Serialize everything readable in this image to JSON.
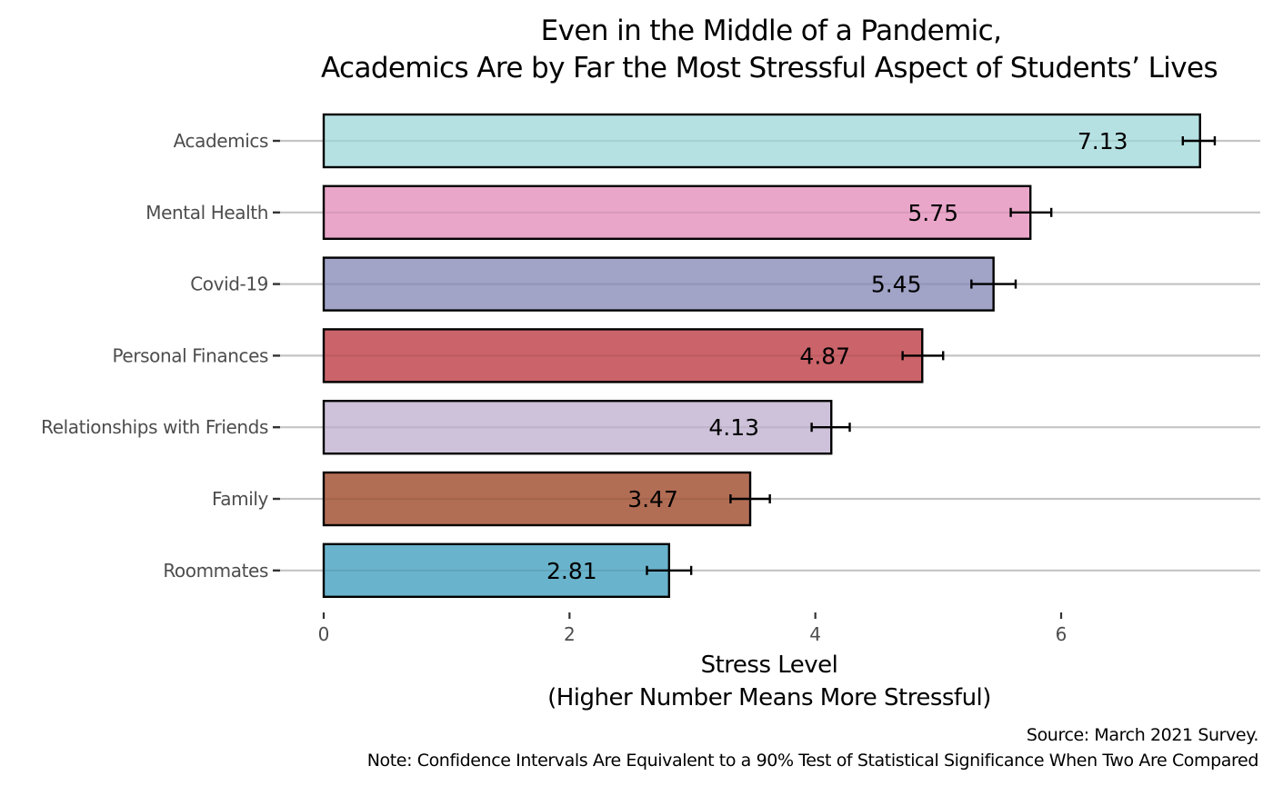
{
  "chart_data": {
    "type": "bar",
    "orientation": "horizontal",
    "title": "Even in the Middle of a Pandemic,\nAcademics Are by Far the Most Stressful Aspect of Students’ Lives",
    "title_lines": [
      "Even in the Middle of a Pandemic,",
      "Academics Are by Far the Most Stressful Aspect of Students’ Lives"
    ],
    "xlabel": "Stress Level\n(Higher Number Means More Stressful)",
    "xlabel_lines": [
      "Stress Level",
      "(Higher Number Means More Stressful)"
    ],
    "ylabel": "",
    "caption_lines": [
      "Source: March 2021 Survey.",
      "Note: Confidence Intervals Are Equivalent to a 90% Test of Statistical Significance When Two Are Compared"
    ],
    "xlim": [
      0,
      7.3
    ],
    "xticks": [
      0,
      2,
      4,
      6
    ],
    "xtick_labels": [
      "0",
      "2",
      "4",
      "6"
    ],
    "grid": "horizontal major lines at each category",
    "legend": "none",
    "categories": [
      "Academics",
      "Mental Health",
      "Covid-19",
      "Personal Finances",
      "Relationships with Friends",
      "Family",
      "Roommates"
    ],
    "values": [
      7.13,
      5.75,
      5.45,
      4.87,
      4.13,
      3.47,
      2.81
    ],
    "value_labels": [
      "7.13",
      "5.75",
      "5.45",
      "4.87",
      "4.13",
      "3.47",
      "2.81"
    ],
    "ci_lower": [
      6.99,
      5.59,
      5.27,
      4.71,
      3.97,
      3.31,
      2.63
    ],
    "ci_upper": [
      7.25,
      5.92,
      5.63,
      5.04,
      4.28,
      3.63,
      2.99
    ],
    "colors": [
      "#b2dfe0",
      "#e8a1c6",
      "#9c9ec4",
      "#c85c62",
      "#cbbfd8",
      "#ae664c",
      "#62afc9"
    ]
  }
}
